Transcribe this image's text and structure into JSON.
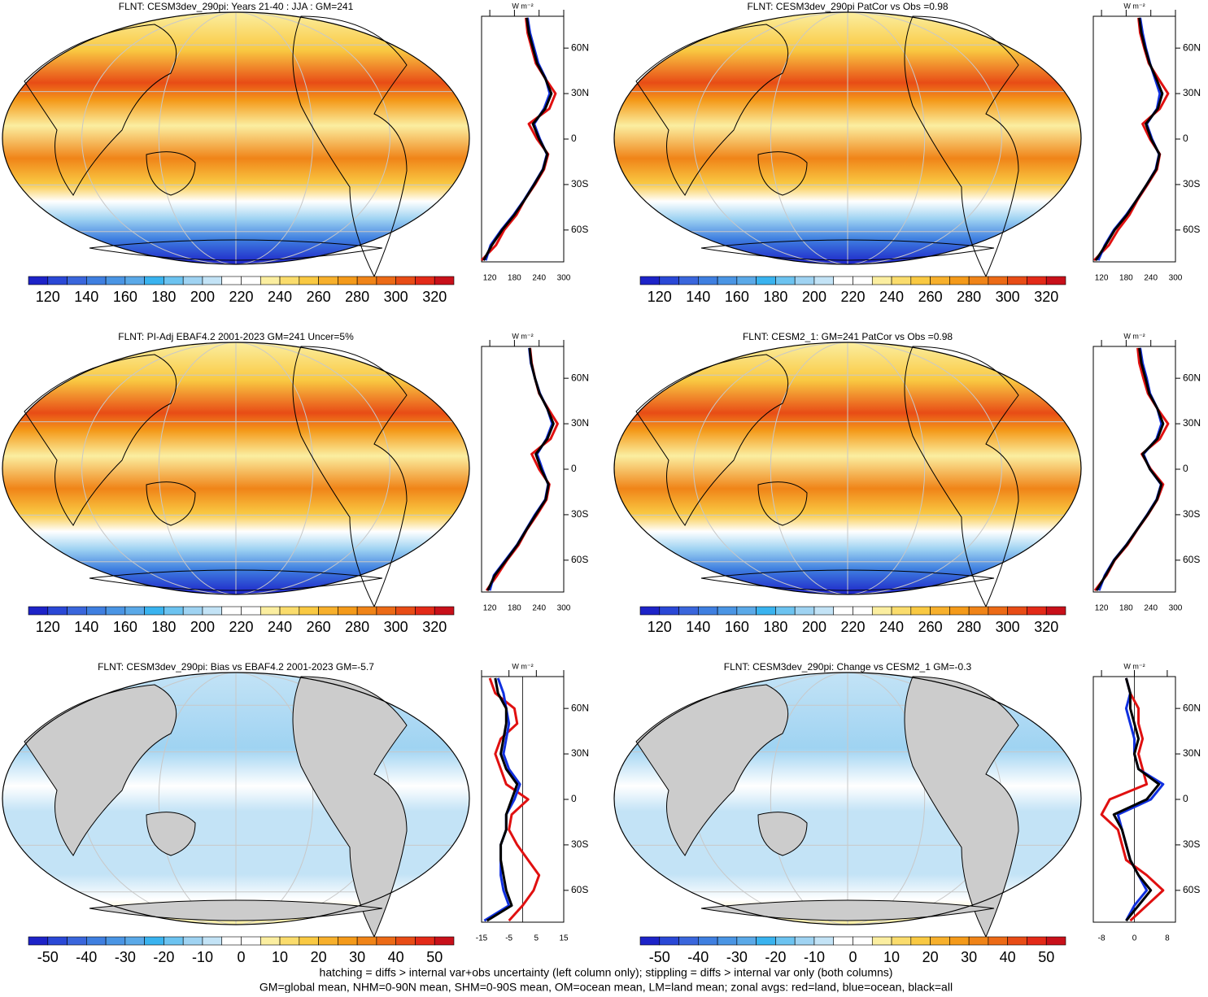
{
  "chart_data": [
    {
      "type": "line",
      "title": "FLNT: CESM3dev_290pi: Years 21-40 : JJA : GM=241",
      "unit": "W m⁻²",
      "xlim": [
        100,
        300
      ],
      "xticks": [
        120,
        180,
        240,
        300
      ],
      "ylim": [
        -81,
        81
      ],
      "yticks": [
        {
          "value": 60,
          "label": "60N"
        },
        {
          "value": 30,
          "label": "30N"
        },
        0,
        {
          "value": -30,
          "label": "30S"
        },
        {
          "value": -60,
          "label": "60S"
        }
      ],
      "y": [
        -80,
        -70,
        -60,
        -50,
        -40,
        -30,
        -20,
        -10,
        0,
        10,
        20,
        30,
        40,
        50,
        60,
        70,
        80
      ],
      "series": [
        {
          "color": "#e01010",
          "values": [
            100,
            135,
            155,
            185,
            205,
            230,
            252,
            262,
            235,
            215,
            265,
            280,
            255,
            232,
            222,
            212,
            208
          ]
        },
        {
          "color": "#1030e0",
          "values": [
            110,
            122,
            148,
            178,
            204,
            227,
            249,
            259,
            242,
            228,
            252,
            266,
            256,
            238,
            228,
            218,
            212
          ]
        },
        {
          "color": "#000000",
          "values": [
            105,
            125,
            150,
            180,
            205,
            228,
            250,
            260,
            240,
            225,
            255,
            270,
            255,
            235,
            225,
            215,
            210
          ]
        }
      ],
      "colorbar": {
        "levels": [
          110,
          120,
          130,
          140,
          150,
          160,
          170,
          180,
          190,
          200,
          210,
          220,
          230,
          240,
          250,
          260,
          270,
          280,
          290,
          300,
          310,
          320,
          330
        ],
        "colors": [
          "#1d23c8",
          "#2a48d6",
          "#3a66dc",
          "#3f7fe0",
          "#4a95e4",
          "#5aa9e8",
          "#39b3ef",
          "#6cc3f0",
          "#9fd3f2",
          "#c3e3f6",
          "#ffffff",
          "#ffffff",
          "#fbeea0",
          "#fadc6c",
          "#f9c942",
          "#f7b02c",
          "#f49a1a",
          "#f08418",
          "#ec6a16",
          "#e84c16",
          "#e32a18",
          "#c8101a"
        ],
        "ticks": [
          120,
          140,
          160,
          180,
          200,
          220,
          240,
          260,
          280,
          300,
          320
        ]
      }
    },
    {
      "type": "line",
      "title": "FLNT: CESM3dev_290pi PatCor vs Obs =0.98",
      "unit": "W m⁻²",
      "xlim": [
        100,
        300
      ],
      "xticks": [
        120,
        180,
        240,
        300
      ],
      "ylim": [
        -81,
        81
      ],
      "yticks": [
        {
          "value": 60,
          "label": "60N"
        },
        {
          "value": 30,
          "label": "30N"
        },
        0,
        {
          "value": -30,
          "label": "30S"
        },
        {
          "value": -60,
          "label": "60S"
        }
      ],
      "y": [
        -80,
        -70,
        -60,
        -50,
        -40,
        -30,
        -20,
        -10,
        0,
        10,
        20,
        30,
        40,
        50,
        60,
        70,
        80
      ],
      "series": [
        {
          "color": "#e01010",
          "values": [
            102,
            138,
            160,
            188,
            208,
            232,
            255,
            262,
            238,
            220,
            262,
            282,
            258,
            235,
            224,
            214,
            210
          ]
        },
        {
          "color": "#1030e0",
          "values": [
            112,
            128,
            150,
            180,
            206,
            230,
            252,
            260,
            243,
            230,
            255,
            262,
            250,
            238,
            228,
            220,
            214
          ]
        },
        {
          "color": "#000000",
          "values": [
            106,
            130,
            152,
            182,
            206,
            230,
            253,
            261,
            241,
            228,
            257,
            268,
            253,
            237,
            226,
            217,
            212
          ]
        }
      ],
      "colorbar": {
        "levels": [
          110,
          120,
          130,
          140,
          150,
          160,
          170,
          180,
          190,
          200,
          210,
          220,
          230,
          240,
          250,
          260,
          270,
          280,
          290,
          300,
          310,
          320,
          330
        ],
        "colors": [
          "#1d23c8",
          "#2a48d6",
          "#3a66dc",
          "#3f7fe0",
          "#4a95e4",
          "#5aa9e8",
          "#39b3ef",
          "#6cc3f0",
          "#9fd3f2",
          "#c3e3f6",
          "#ffffff",
          "#ffffff",
          "#fbeea0",
          "#fadc6c",
          "#f9c942",
          "#f7b02c",
          "#f49a1a",
          "#f08418",
          "#ec6a16",
          "#e84c16",
          "#e32a18",
          "#c8101a"
        ],
        "ticks": [
          120,
          140,
          160,
          180,
          200,
          220,
          240,
          260,
          280,
          300,
          320
        ]
      }
    },
    {
      "type": "line",
      "title": "FLNT: PI-Adj EBAF4.2 2001-2023 GM=241 Uncer=5%",
      "unit": "W m⁻²",
      "xlim": [
        100,
        300
      ],
      "xticks": [
        120,
        180,
        240,
        300
      ],
      "ylim": [
        -81,
        81
      ],
      "yticks": [
        {
          "value": 60,
          "label": "60N"
        },
        {
          "value": 30,
          "label": "30N"
        },
        0,
        {
          "value": -30,
          "label": "30S"
        },
        {
          "value": -60,
          "label": "60S"
        }
      ],
      "y": [
        -80,
        -70,
        -60,
        -50,
        -40,
        -30,
        -20,
        -10,
        0,
        10,
        20,
        30,
        40,
        50,
        60,
        70,
        80
      ],
      "series": [
        {
          "color": "#e01010",
          "values": [
            112,
            138,
            162,
            190,
            210,
            235,
            258,
            265,
            240,
            222,
            268,
            285,
            262,
            240,
            230,
            222,
            218
          ]
        },
        {
          "color": "#1030e0",
          "values": [
            120,
            130,
            158,
            186,
            208,
            230,
            255,
            262,
            248,
            235,
            258,
            272,
            260,
            242,
            230,
            220,
            216
          ]
        },
        {
          "color": "#000000",
          "values": [
            115,
            132,
            160,
            187,
            209,
            232,
            256,
            263,
            245,
            232,
            260,
            275,
            260,
            241,
            230,
            221,
            217
          ]
        }
      ],
      "colorbar": {
        "levels": [
          110,
          120,
          130,
          140,
          150,
          160,
          170,
          180,
          190,
          200,
          210,
          220,
          230,
          240,
          250,
          260,
          270,
          280,
          290,
          300,
          310,
          320,
          330
        ],
        "colors": [
          "#1d23c8",
          "#2a48d6",
          "#3a66dc",
          "#3f7fe0",
          "#4a95e4",
          "#5aa9e8",
          "#39b3ef",
          "#6cc3f0",
          "#9fd3f2",
          "#c3e3f6",
          "#ffffff",
          "#ffffff",
          "#fbeea0",
          "#fadc6c",
          "#f9c942",
          "#f7b02c",
          "#f49a1a",
          "#f08418",
          "#ec6a16",
          "#e84c16",
          "#e32a18",
          "#c8101a"
        ],
        "ticks": [
          120,
          140,
          160,
          180,
          200,
          220,
          240,
          260,
          280,
          300,
          320
        ]
      }
    },
    {
      "type": "line",
      "title": "FLNT: CESM2_1: GM=241 PatCor vs Obs =0.98",
      "unit": "W m⁻²",
      "xlim": [
        100,
        300
      ],
      "xticks": [
        120,
        180,
        240,
        300
      ],
      "ylim": [
        -81,
        81
      ],
      "yticks": [
        {
          "value": 60,
          "label": "60N"
        },
        {
          "value": 30,
          "label": "30N"
        },
        0,
        {
          "value": -30,
          "label": "30S"
        },
        {
          "value": -60,
          "label": "60S"
        }
      ],
      "y": [
        -80,
        -70,
        -60,
        -50,
        -40,
        -30,
        -20,
        -10,
        0,
        10,
        20,
        30,
        40,
        50,
        60,
        70,
        80
      ],
      "series": [
        {
          "color": "#e01010",
          "values": [
            104,
            132,
            152,
            183,
            207,
            233,
            256,
            270,
            240,
            218,
            262,
            282,
            256,
            233,
            222,
            212,
            208
          ]
        },
        {
          "color": "#1030e0",
          "values": [
            114,
            128,
            150,
            180,
            206,
            231,
            254,
            265,
            238,
            222,
            254,
            266,
            256,
            238,
            230,
            220,
            214
          ]
        },
        {
          "color": "#000000",
          "values": [
            108,
            130,
            151,
            181,
            206,
            232,
            255,
            266,
            238,
            220,
            256,
            270,
            256,
            236,
            227,
            217,
            212
          ]
        }
      ],
      "colorbar": {
        "levels": [
          110,
          120,
          130,
          140,
          150,
          160,
          170,
          180,
          190,
          200,
          210,
          220,
          230,
          240,
          250,
          260,
          270,
          280,
          290,
          300,
          310,
          320,
          330
        ],
        "colors": [
          "#1d23c8",
          "#2a48d6",
          "#3a66dc",
          "#3f7fe0",
          "#4a95e4",
          "#5aa9e8",
          "#39b3ef",
          "#6cc3f0",
          "#9fd3f2",
          "#c3e3f6",
          "#ffffff",
          "#ffffff",
          "#fbeea0",
          "#fadc6c",
          "#f9c942",
          "#f7b02c",
          "#f49a1a",
          "#f08418",
          "#ec6a16",
          "#e84c16",
          "#e32a18",
          "#c8101a"
        ],
        "ticks": [
          120,
          140,
          160,
          180,
          200,
          220,
          240,
          260,
          280,
          300,
          320
        ]
      }
    },
    {
      "type": "line",
      "title": "FLNT: CESM3dev_290pi: Bias vs EBAF4.2 2001-2023 GM=-5.7",
      "unit": "W m⁻²",
      "xlim": [
        -15,
        15
      ],
      "xticks": [
        -15,
        -5,
        5,
        15
      ],
      "ylim": [
        -81,
        81
      ],
      "yticks": [
        {
          "value": 60,
          "label": "60N"
        },
        {
          "value": 30,
          "label": "30N"
        },
        0,
        {
          "value": -30,
          "label": "30S"
        },
        {
          "value": -60,
          "label": "60S"
        }
      ],
      "y": [
        -80,
        -70,
        -60,
        -50,
        -40,
        -30,
        -20,
        -10,
        0,
        10,
        20,
        30,
        40,
        50,
        60,
        70,
        80
      ],
      "series": [
        {
          "color": "#e01010",
          "values": [
            -5,
            0,
            4,
            6,
            2,
            -2,
            -5,
            -4,
            2,
            -6,
            -8,
            -10,
            -8,
            -2,
            -3,
            -10,
            -12
          ]
        },
        {
          "color": "#1030e0",
          "values": [
            -14,
            -5,
            -7,
            -8,
            -8,
            -8,
            -6,
            -6,
            -3,
            -1,
            -5,
            -7,
            -6,
            -5,
            -6,
            -7,
            -9
          ]
        },
        {
          "color": "#000000",
          "values": [
            -13,
            -4,
            -6,
            -7,
            -8,
            -8,
            -6,
            -6,
            -4,
            -2,
            -6,
            -8,
            -7,
            -6,
            -6,
            -9,
            -10
          ]
        }
      ],
      "colorbar": {
        "levels": [
          -55,
          -50,
          -45,
          -40,
          -35,
          -30,
          -25,
          -20,
          -15,
          -10,
          -5,
          0,
          5,
          10,
          15,
          20,
          25,
          30,
          35,
          40,
          45,
          50,
          55
        ],
        "colors": [
          "#1d23c8",
          "#2a48d6",
          "#3a66dc",
          "#3f7fe0",
          "#4a95e4",
          "#5aa9e8",
          "#39b3ef",
          "#6cc3f0",
          "#9fd3f2",
          "#c3e3f6",
          "#ffffff",
          "#ffffff",
          "#fbeea0",
          "#fadc6c",
          "#f9c942",
          "#f7b02c",
          "#f49a1a",
          "#f08418",
          "#ec6a16",
          "#e84c16",
          "#e32a18",
          "#c8101a"
        ],
        "ticks": [
          -50,
          -40,
          -30,
          -20,
          -10,
          0,
          10,
          20,
          30,
          40,
          50
        ]
      }
    },
    {
      "type": "line",
      "title": "FLNT: CESM3dev_290pi: Change vs CESM2_1 GM=-0.3",
      "unit": "W m⁻²",
      "xlim": [
        -10,
        10
      ],
      "xticks": [
        -8,
        0,
        8
      ],
      "ylim": [
        -81,
        81
      ],
      "yticks": [
        {
          "value": 60,
          "label": "60N"
        },
        {
          "value": 30,
          "label": "30N"
        },
        0,
        {
          "value": -30,
          "label": "30S"
        },
        {
          "value": -60,
          "label": "60S"
        }
      ],
      "y": [
        -80,
        -70,
        -60,
        -50,
        -40,
        -30,
        -20,
        -10,
        0,
        10,
        20,
        30,
        40,
        50,
        60,
        70,
        80
      ],
      "series": [
        {
          "color": "#e01010",
          "values": [
            -1,
            3,
            7,
            3,
            -2,
            -3,
            -4,
            -8,
            -6,
            3,
            2,
            1,
            2,
            1,
            1,
            -1,
            -2
          ]
        },
        {
          "color": "#1030e0",
          "values": [
            -2,
            0,
            3,
            1,
            -1,
            -2,
            -3,
            -4,
            4,
            7,
            1,
            0,
            0,
            -1,
            -2,
            -1,
            -2
          ]
        },
        {
          "color": "#000000",
          "values": [
            -2,
            1,
            4,
            1,
            -1,
            -2,
            -3,
            -5,
            3,
            6,
            1,
            0,
            1,
            0,
            -1,
            -1,
            -2
          ]
        }
      ],
      "colorbar": {
        "levels": [
          -55,
          -50,
          -45,
          -40,
          -35,
          -30,
          -25,
          -20,
          -15,
          -10,
          -5,
          0,
          5,
          10,
          15,
          20,
          25,
          30,
          35,
          40,
          45,
          50,
          55
        ],
        "colors": [
          "#1d23c8",
          "#2a48d6",
          "#3a66dc",
          "#3f7fe0",
          "#4a95e4",
          "#5aa9e8",
          "#39b3ef",
          "#6cc3f0",
          "#9fd3f2",
          "#c3e3f6",
          "#ffffff",
          "#ffffff",
          "#fbeea0",
          "#fadc6c",
          "#f9c942",
          "#f7b02c",
          "#f49a1a",
          "#f08418",
          "#ec6a16",
          "#e84c16",
          "#e32a18",
          "#c8101a"
        ],
        "ticks": [
          -50,
          -40,
          -30,
          -20,
          -10,
          0,
          10,
          20,
          30,
          40,
          50
        ]
      }
    }
  ],
  "footer": [
    "hatching = diffs > internal var+obs uncertainty (left column only); stippling = diffs > internal var only (both columns)",
    "GM=global mean, NHM=0-90N mean, SHM=0-90S mean, OM=ocean mean, LM=land mean; zonal avgs: red=land, blue=ocean, black=all"
  ]
}
